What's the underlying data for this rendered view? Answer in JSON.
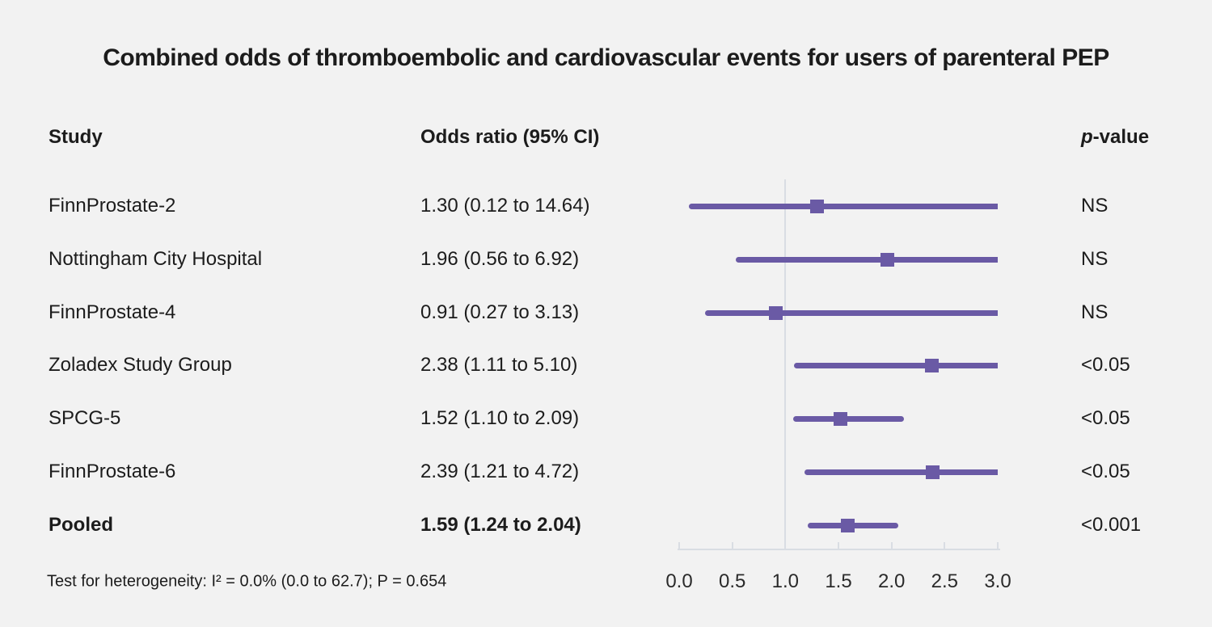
{
  "title": "Combined odds of thromboembolic and cardiovascular events for users of parenteral PEP",
  "columns": {
    "study": "Study",
    "odds_ratio": "Odds ratio (95% CI)",
    "p_italic": "p",
    "p_rest": "-value"
  },
  "footnote": "Test for heterogeneity: I² = 0.0% (0.0 to 62.7); P = 0.654",
  "colors": {
    "background": "#f2f2f2",
    "accent_purple": "#6a5aa5",
    "axis_gray": "#d9dde3",
    "text": "#1c1c1c"
  },
  "chart_data": {
    "type": "scatter",
    "variant": "forest-plot",
    "title": "Combined odds of thromboembolic and cardiovascular events for users of parenteral PEP",
    "xlabel": "",
    "ylabel": "",
    "legend": "none",
    "x_axis": {
      "min": 0,
      "max": 3,
      "tick_values": [
        0,
        0.5,
        1,
        1.5,
        2,
        2.5,
        3
      ],
      "tick_labels": [
        "0.0",
        "0.5",
        "1.0",
        "1.5",
        "2.0",
        "2.5",
        "3.0"
      ],
      "reference_line": 1.0
    },
    "studies": [
      {
        "name": "FinnProstate-2",
        "or": 1.3,
        "ci_low": 0.12,
        "ci_high": 14.64,
        "or_label": "1.30 (0.12 to 14.64)",
        "p_value": "NS",
        "emphasis": false
      },
      {
        "name": "Nottingham City Hospital",
        "or": 1.96,
        "ci_low": 0.56,
        "ci_high": 6.92,
        "or_label": "1.96 (0.56 to 6.92)",
        "p_value": "NS",
        "emphasis": false
      },
      {
        "name": "FinnProstate-4",
        "or": 0.91,
        "ci_low": 0.27,
        "ci_high": 3.13,
        "or_label": "0.91 (0.27 to 3.13)",
        "p_value": "NS",
        "emphasis": false
      },
      {
        "name": "Zoladex Study Group",
        "or": 2.38,
        "ci_low": 1.11,
        "ci_high": 5.1,
        "or_label": "2.38 (1.11 to 5.10)",
        "p_value": "<0.05",
        "emphasis": false
      },
      {
        "name": "SPCG-5",
        "or": 1.52,
        "ci_low": 1.1,
        "ci_high": 2.09,
        "or_label": "1.52 (1.10 to 2.09)",
        "p_value": "<0.05",
        "emphasis": false
      },
      {
        "name": "FinnProstate-6",
        "or": 2.39,
        "ci_low": 1.21,
        "ci_high": 4.72,
        "or_label": "2.39 (1.21 to 4.72)",
        "p_value": "<0.05",
        "emphasis": false
      },
      {
        "name": "Pooled",
        "or": 1.59,
        "ci_low": 1.24,
        "ci_high": 2.04,
        "or_label": "1.59 (1.24 to 2.04)",
        "p_value": "<0.001",
        "emphasis": true
      }
    ],
    "heterogeneity_note": "Test for heterogeneity: I² = 0.0% (0.0 to 62.7); P = 0.654"
  }
}
